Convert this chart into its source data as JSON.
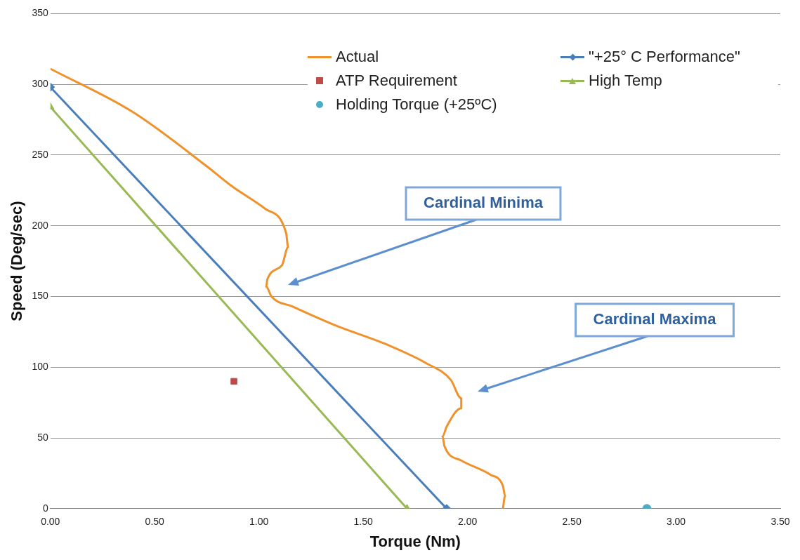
{
  "chart_data": {
    "type": "line",
    "xlabel": "Torque (Nm)",
    "ylabel": "Speed (Deg/sec)",
    "xlim": [
      0,
      3.5
    ],
    "xticks": [
      {
        "value": 0,
        "label": "0.00"
      },
      {
        "value": 0.5,
        "label": "0.50"
      },
      {
        "value": 1,
        "label": "1.00"
      },
      {
        "value": 1.5,
        "label": "1.50"
      },
      {
        "value": 2,
        "label": "2.00"
      },
      {
        "value": 2.5,
        "label": "2.50"
      },
      {
        "value": 3,
        "label": "3.00"
      },
      {
        "value": 3.5,
        "label": "3.50"
      }
    ],
    "ylim": [
      0,
      350
    ],
    "yticks": [
      0,
      50,
      100,
      150,
      200,
      250,
      300,
      350
    ],
    "grid": "y",
    "legend": "top",
    "series": [
      {
        "name": "Actual",
        "type": "line",
        "color": "#f0922b",
        "marker": "none",
        "x": [
          0,
          0.4,
          0.75,
          0.87,
          1.03,
          1.13,
          1.14,
          1.11,
          1.04,
          1.035,
          1.06,
          1.16,
          1.36,
          1.63,
          1.8,
          1.92,
          1.97,
          1.97,
          1.9,
          1.88,
          1.89,
          1.97,
          2.11,
          2.17,
          2.18,
          2.17
        ],
        "values": [
          311,
          280,
          242,
          228,
          212,
          195,
          185,
          172,
          162,
          157,
          150,
          143,
          130,
          115,
          103,
          91,
          78,
          71,
          58,
          51,
          44,
          34,
          24,
          16,
          9,
          0
        ]
      },
      {
        "name": "\"+25° C Performance\"",
        "type": "line",
        "color": "#4a7ebb",
        "marker": "diamond",
        "x": [
          0,
          1.9
        ],
        "values": [
          298,
          0
        ]
      },
      {
        "name": "ATP Requirement",
        "type": "scatter",
        "color": "#be4b48",
        "marker": "square",
        "x": [
          0.88
        ],
        "values": [
          90
        ]
      },
      {
        "name": "High Temp",
        "type": "line",
        "color": "#98b954",
        "marker": "triangle",
        "x": [
          0,
          1.71
        ],
        "values": [
          284,
          0
        ]
      },
      {
        "name": "Holding Torque (+25ºC)",
        "type": "scatter",
        "color": "#4bacc6",
        "marker": "circle",
        "x": [
          2.86
        ],
        "values": [
          0
        ]
      }
    ],
    "annotations": [
      "Cardinal Minima",
      "Cardinal Maxima"
    ]
  }
}
